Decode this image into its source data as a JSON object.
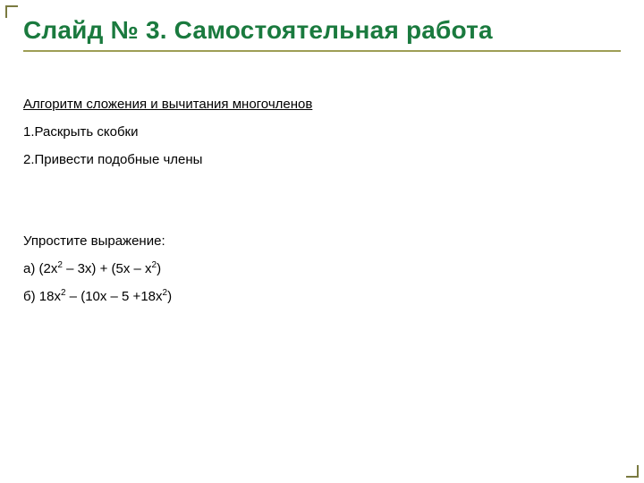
{
  "slide": {
    "title": "Слайд № 3. Самостоятельная работа",
    "title_color": "#1a7a3e",
    "title_fontsize": 28,
    "underline_color": "#9e9e55",
    "background_color": "#ffffff",
    "body_color": "#000000",
    "body_fontsize": 15,
    "corner_color": "#7a7a40",
    "section1": {
      "heading": "Алгоритм сложения и вычитания многочленов",
      "items": [
        "1.Раскрыть скобки",
        "2.Привести подобные члены"
      ]
    },
    "section2": {
      "heading": "Упростите выражение:",
      "items_html": [
        "а) (2x<sup>2</sup> – 3x) + (5x – x<sup>2</sup>)",
        "б) 18x<sup>2</sup> – (10x – 5 +18x<sup>2</sup>)"
      ]
    }
  }
}
